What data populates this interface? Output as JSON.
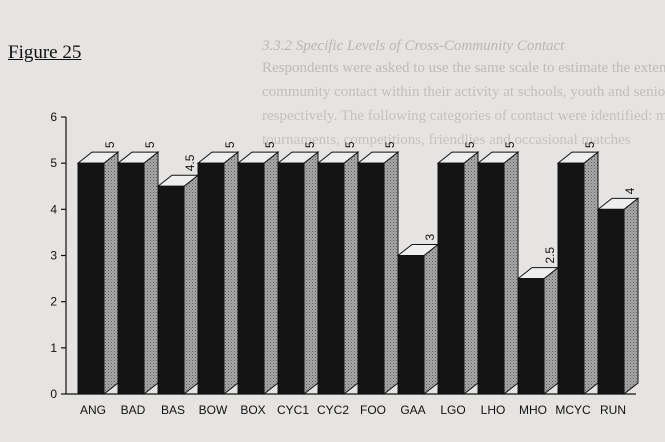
{
  "figure_label": "Figure 25",
  "bleed_through": {
    "heading": "3.3.2 Specific Levels of Cross-Community Contact",
    "lines": [
      "Respondents were asked to use the same scale to estimate the extent of cross-",
      "community contact within their activity at schools, youth and senior level",
      "respectively. The following categories of contact were identified: mixed",
      "tournaments, competitions, friendlies and occasional matches"
    ]
  },
  "chart_data": {
    "type": "bar",
    "title": "",
    "xlabel": "",
    "ylabel": "",
    "categories": [
      "ANG",
      "BAD",
      "BAS",
      "BOW",
      "BOX",
      "CYC1",
      "CYC2",
      "FOO",
      "GAA",
      "LGO",
      "LHO",
      "MHO",
      "MCYC",
      "RUN"
    ],
    "series": [
      {
        "values": [
          5,
          5,
          4.5,
          5,
          5,
          5,
          5,
          5,
          3,
          5,
          5,
          2.5,
          5,
          4
        ]
      }
    ],
    "data_labels": [
      "5",
      "5",
      "4.5",
      "5",
      "5",
      "5",
      "5",
      "5",
      "3",
      "5",
      "5",
      "2.5",
      "5",
      "4"
    ],
    "ylim": [
      0,
      6
    ],
    "yticks": [
      0,
      1,
      2,
      3,
      4,
      5,
      6
    ],
    "grid": false,
    "legend": "none",
    "style": "3d-bar",
    "colors": {
      "front": "#141414",
      "top": "#eeeeee",
      "side": "#a8a8a8",
      "axis": "#111111"
    }
  }
}
